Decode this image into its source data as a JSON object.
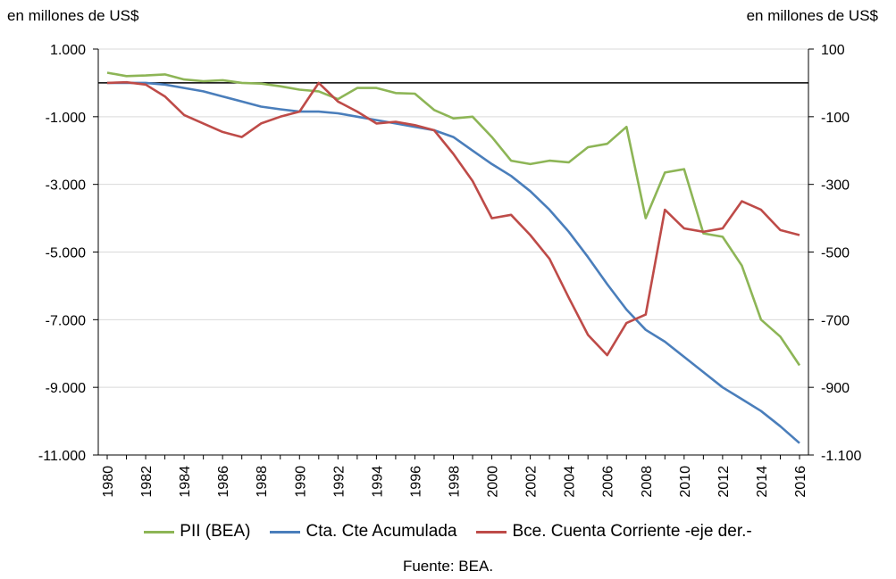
{
  "chart_data": {
    "type": "line",
    "left_unit_label": "en millones de US$",
    "right_unit_label": "en millones de US$",
    "x": [
      1980,
      1981,
      1982,
      1983,
      1984,
      1985,
      1986,
      1987,
      1988,
      1989,
      1990,
      1991,
      1992,
      1993,
      1994,
      1995,
      1996,
      1997,
      1998,
      1999,
      2000,
      2001,
      2002,
      2003,
      2004,
      2005,
      2006,
      2007,
      2008,
      2009,
      2010,
      2011,
      2012,
      2013,
      2014,
      2015,
      2016
    ],
    "x_tick_labels": [
      "1980",
      "1982",
      "1984",
      "1986",
      "1988",
      "1990",
      "1992",
      "1994",
      "1996",
      "1998",
      "2000",
      "2002",
      "2004",
      "2006",
      "2008",
      "2010",
      "2012",
      "2014",
      "2016"
    ],
    "y_left": {
      "lim": [
        -11000,
        1000
      ],
      "ticks": [
        1000,
        -1000,
        -3000,
        -5000,
        -7000,
        -9000,
        -11000
      ],
      "tick_labels": [
        "1.000",
        "-1.000",
        "-3.000",
        "-5.000",
        "-7.000",
        "-9.000",
        "-11.000"
      ]
    },
    "y_right": {
      "lim": [
        -1100,
        100
      ],
      "ticks": [
        100,
        -100,
        -300,
        -500,
        -700,
        -900,
        -1100
      ],
      "tick_labels": [
        "100",
        "-100",
        "-300",
        "-500",
        "-700",
        "-900",
        "-1.100"
      ]
    },
    "series": [
      {
        "name": "PII (BEA)",
        "axis": "left",
        "color": "#8DB556",
        "values": [
          300,
          200,
          220,
          250,
          100,
          50,
          80,
          0,
          -20,
          -100,
          -200,
          -250,
          -480,
          -150,
          -150,
          -300,
          -320,
          -800,
          -1050,
          -1000,
          -1600,
          -2300,
          -2400,
          -2300,
          -2350,
          -1900,
          -1800,
          -1300,
          -4000,
          -2650,
          -2550,
          -4450,
          -4550,
          -5400,
          -7000,
          -7500,
          -8350
        ]
      },
      {
        "name": "Cta. Cte Acumulada",
        "axis": "left",
        "color": "#4A7EBB",
        "values": [
          0,
          0,
          0,
          -50,
          -150,
          -250,
          -400,
          -550,
          -700,
          -780,
          -850,
          -850,
          -900,
          -1000,
          -1100,
          -1200,
          -1300,
          -1400,
          -1600,
          -2000,
          -2400,
          -2750,
          -3200,
          -3750,
          -4400,
          -5150,
          -5950,
          -6700,
          -7300,
          -7650,
          -8100,
          -8550,
          -9000,
          -9350,
          -9700,
          -10150,
          -10650
        ]
      },
      {
        "name": "Bce. Cuenta Corriente -eje der.-",
        "axis": "right",
        "color": "#BE4B48",
        "values": [
          0,
          2,
          -5,
          -40,
          -95,
          -120,
          -145,
          -160,
          -120,
          -100,
          -85,
          0,
          -55,
          -85,
          -120,
          -115,
          -125,
          -140,
          -210,
          -290,
          -400,
          -390,
          -450,
          -520,
          -635,
          -745,
          -805,
          -710,
          -685,
          -375,
          -430,
          -440,
          -430,
          -350,
          -375,
          -435,
          -450
        ]
      }
    ],
    "grid": "horizontal"
  },
  "source_text": "Fuente: BEA."
}
